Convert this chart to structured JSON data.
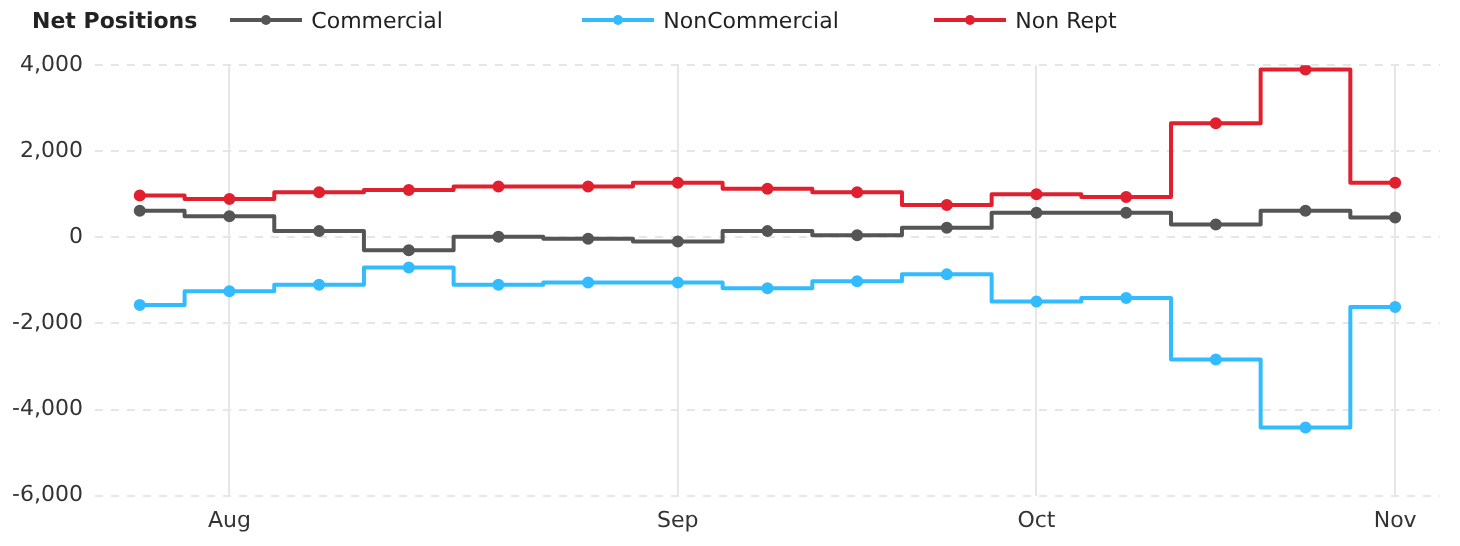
{
  "chart_data": {
    "type": "step",
    "title": "Net Positions",
    "categories": [
      null,
      "Aug",
      null,
      null,
      null,
      null,
      "Sep",
      null,
      null,
      null,
      "Oct",
      null,
      null,
      null,
      "Nov"
    ],
    "series": [
      {
        "name": "Commercial",
        "color": "#555555",
        "values": [
          620,
          490,
          145,
          -300,
          15,
          -30,
          -95,
          145,
          50,
          225,
          570,
          570,
          300,
          620,
          460
        ]
      },
      {
        "name": "NonCommercial",
        "color": "#33bbff",
        "values": [
          -1570,
          -1250,
          -1100,
          -700,
          -1100,
          -1050,
          -1050,
          -1180,
          -1020,
          -860,
          -1490,
          -1410,
          -2840,
          -4420,
          -1620
        ]
      },
      {
        "name": "Non Rept",
        "color": "#e0202e",
        "values": [
          970,
          890,
          1050,
          1100,
          1180,
          1180,
          1270,
          1130,
          1050,
          750,
          1000,
          940,
          2650,
          3900,
          1270
        ]
      }
    ],
    "ylim": [
      -6000,
      4000
    ],
    "yticks": [
      {
        "value": -6000,
        "label": "-6,000"
      },
      {
        "value": -4000,
        "label": "-4,000"
      },
      {
        "value": -2000,
        "label": "-2,000"
      },
      0,
      {
        "value": 2000,
        "label": "2,000"
      },
      {
        "value": 4000,
        "label": "4,000"
      }
    ],
    "grid": true,
    "legend": "top",
    "marker": "circle",
    "line_style": "solid"
  }
}
